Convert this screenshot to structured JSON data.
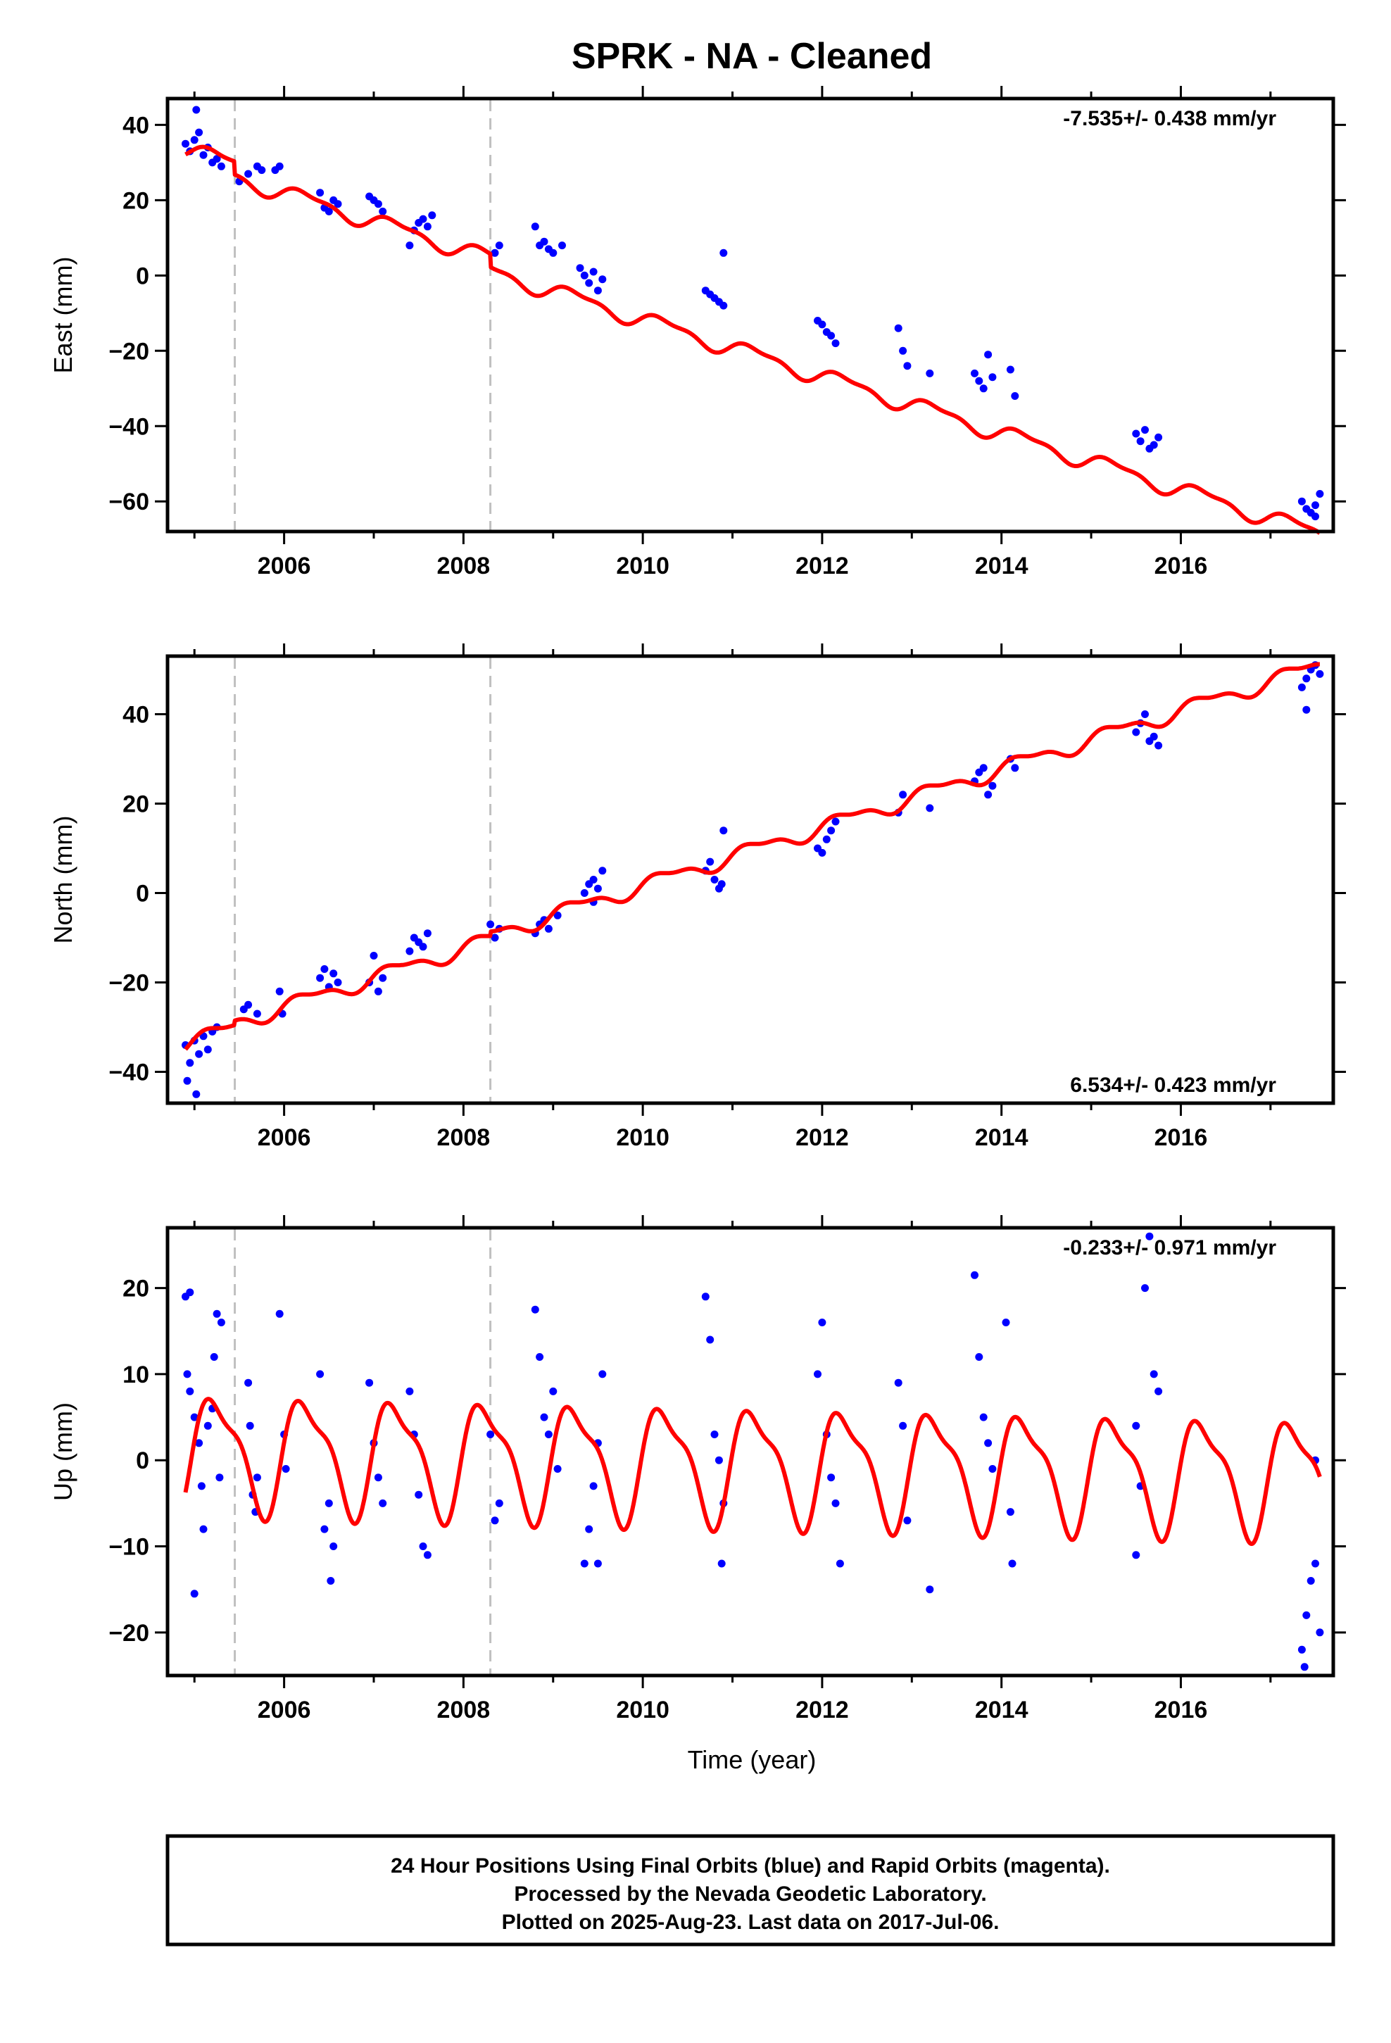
{
  "title": "SPRK  - NA - Cleaned",
  "xlabel": "Time (year)",
  "footer": {
    "line1": "24 Hour Positions Using Final Orbits (blue) and Rapid Orbits (magenta).",
    "line2": "Processed by the Nevada Geodetic Laboratory.",
    "line3": "Plotted on 2025-Aug-23. Last data on 2017-Jul-06."
  },
  "colors": {
    "final_orbits": "#0000ff",
    "model_fit": "#ff0000",
    "equipment_change": "#c0c0c0",
    "axis": "#000000"
  },
  "chart_data": [
    {
      "type": "scatter",
      "name": "East",
      "ylabel": "East (mm)",
      "rate_text": "-7.535+/- 0.438 mm/yr",
      "rate_position": "top-right",
      "xlim": [
        2004.7,
        2017.7
      ],
      "ylim": [
        -68,
        47
      ],
      "xticks": [
        2006,
        2008,
        2010,
        2012,
        2014,
        2016
      ],
      "yticks": [
        -60,
        -40,
        -20,
        0,
        20,
        40
      ],
      "grid": false,
      "equipment_change_lines": [
        2005.45,
        2008.3
      ],
      "fit": {
        "rate": -7.535,
        "intercept_2005": 33.0,
        "annual_amplitude": 2.0,
        "semiannual_amplitude": 0.8,
        "offsets": [
          {
            "at": 2005.45,
            "size": -3.5
          },
          {
            "at": 2008.3,
            "size": -3.5
          }
        ]
      },
      "points": [
        [
          2004.9,
          35
        ],
        [
          2004.95,
          33
        ],
        [
          2005.0,
          36
        ],
        [
          2005.05,
          38
        ],
        [
          2005.02,
          44
        ],
        [
          2005.1,
          32
        ],
        [
          2005.15,
          34
        ],
        [
          2005.2,
          30
        ],
        [
          2005.25,
          31
        ],
        [
          2005.3,
          29
        ],
        [
          2005.5,
          25
        ],
        [
          2005.6,
          27
        ],
        [
          2005.7,
          29
        ],
        [
          2005.75,
          28
        ],
        [
          2005.9,
          28
        ],
        [
          2005.95,
          29
        ],
        [
          2006.4,
          22
        ],
        [
          2006.45,
          18
        ],
        [
          2006.5,
          17
        ],
        [
          2006.55,
          20
        ],
        [
          2006.6,
          19
        ],
        [
          2006.95,
          21
        ],
        [
          2007.0,
          20
        ],
        [
          2007.05,
          19
        ],
        [
          2007.1,
          17
        ],
        [
          2007.4,
          8
        ],
        [
          2007.45,
          12
        ],
        [
          2007.5,
          14
        ],
        [
          2007.55,
          15
        ],
        [
          2007.6,
          13
        ],
        [
          2007.65,
          16
        ],
        [
          2008.35,
          6
        ],
        [
          2008.4,
          8
        ],
        [
          2008.8,
          13
        ],
        [
          2008.85,
          8
        ],
        [
          2008.9,
          9
        ],
        [
          2008.95,
          7
        ],
        [
          2009.0,
          6
        ],
        [
          2009.1,
          8
        ],
        [
          2009.3,
          2
        ],
        [
          2009.35,
          0
        ],
        [
          2009.4,
          -2
        ],
        [
          2009.45,
          1
        ],
        [
          2009.5,
          -4
        ],
        [
          2009.55,
          -1
        ],
        [
          2010.7,
          -4
        ],
        [
          2010.75,
          -5
        ],
        [
          2010.8,
          -6
        ],
        [
          2010.85,
          -7
        ],
        [
          2010.9,
          -8
        ],
        [
          2010.9,
          6
        ],
        [
          2011.95,
          -12
        ],
        [
          2012.0,
          -13
        ],
        [
          2012.05,
          -15
        ],
        [
          2012.1,
          -16
        ],
        [
          2012.15,
          -18
        ],
        [
          2012.85,
          -14
        ],
        [
          2012.9,
          -20
        ],
        [
          2012.95,
          -24
        ],
        [
          2013.2,
          -26
        ],
        [
          2013.7,
          -26
        ],
        [
          2013.75,
          -28
        ],
        [
          2013.8,
          -30
        ],
        [
          2013.85,
          -21
        ],
        [
          2013.9,
          -27
        ],
        [
          2014.1,
          -25
        ],
        [
          2014.15,
          -32
        ],
        [
          2015.5,
          -42
        ],
        [
          2015.55,
          -44
        ],
        [
          2015.6,
          -41
        ],
        [
          2015.65,
          -46
        ],
        [
          2015.7,
          -45
        ],
        [
          2015.75,
          -43
        ],
        [
          2017.35,
          -60
        ],
        [
          2017.4,
          -62
        ],
        [
          2017.45,
          -63
        ],
        [
          2017.5,
          -64
        ],
        [
          2017.55,
          -58
        ],
        [
          2017.5,
          -61
        ]
      ]
    },
    {
      "type": "scatter",
      "name": "North",
      "ylabel": "North (mm)",
      "rate_text": "6.534+/- 0.423 mm/yr",
      "rate_position": "bottom-right",
      "xlim": [
        2004.7,
        2017.7
      ],
      "ylim": [
        -47,
        53
      ],
      "xticks": [
        2006,
        2008,
        2010,
        2012,
        2014,
        2016
      ],
      "yticks": [
        -40,
        -20,
        0,
        20,
        40
      ],
      "grid": false,
      "equipment_change_lines": [
        2005.45,
        2008.3
      ],
      "fit": {
        "rate": 6.534,
        "intercept_2005": -33.0,
        "annual_amplitude": 1.6,
        "semiannual_amplitude": 0.7,
        "offsets": [
          {
            "at": 2005.45,
            "size": 1.0
          },
          {
            "at": 2008.3,
            "size": 1.0
          }
        ]
      },
      "points": [
        [
          2004.9,
          -34
        ],
        [
          2004.95,
          -38
        ],
        [
          2005.0,
          -33
        ],
        [
          2005.02,
          -45
        ],
        [
          2005.05,
          -36
        ],
        [
          2005.1,
          -32
        ],
        [
          2005.15,
          -35
        ],
        [
          2005.2,
          -31
        ],
        [
          2005.25,
          -30
        ],
        [
          2004.92,
          -42
        ],
        [
          2005.55,
          -26
        ],
        [
          2005.6,
          -25
        ],
        [
          2005.7,
          -27
        ],
        [
          2005.95,
          -22
        ],
        [
          2005.98,
          -27
        ],
        [
          2006.4,
          -19
        ],
        [
          2006.45,
          -17
        ],
        [
          2006.5,
          -21
        ],
        [
          2006.55,
          -18
        ],
        [
          2006.6,
          -20
        ],
        [
          2006.95,
          -20
        ],
        [
          2007.0,
          -14
        ],
        [
          2007.05,
          -22
        ],
        [
          2007.1,
          -19
        ],
        [
          2007.4,
          -13
        ],
        [
          2007.45,
          -10
        ],
        [
          2007.5,
          -11
        ],
        [
          2007.55,
          -12
        ],
        [
          2007.6,
          -9
        ],
        [
          2008.3,
          -7
        ],
        [
          2008.35,
          -10
        ],
        [
          2008.4,
          -8
        ],
        [
          2008.8,
          -9
        ],
        [
          2008.85,
          -7
        ],
        [
          2008.9,
          -6
        ],
        [
          2008.95,
          -8
        ],
        [
          2009.05,
          -5
        ],
        [
          2009.35,
          0
        ],
        [
          2009.4,
          2
        ],
        [
          2009.45,
          3
        ],
        [
          2009.5,
          1
        ],
        [
          2009.55,
          5
        ],
        [
          2009.45,
          -2
        ],
        [
          2010.7,
          5
        ],
        [
          2010.75,
          7
        ],
        [
          2010.8,
          3
        ],
        [
          2010.85,
          1
        ],
        [
          2010.9,
          14
        ],
        [
          2010.88,
          2
        ],
        [
          2011.95,
          10
        ],
        [
          2012.0,
          9
        ],
        [
          2012.05,
          12
        ],
        [
          2012.1,
          14
        ],
        [
          2012.15,
          16
        ],
        [
          2012.85,
          18
        ],
        [
          2012.9,
          22
        ],
        [
          2013.2,
          19
        ],
        [
          2013.7,
          25
        ],
        [
          2013.75,
          27
        ],
        [
          2013.8,
          28
        ],
        [
          2013.85,
          22
        ],
        [
          2013.9,
          24
        ],
        [
          2014.1,
          30
        ],
        [
          2014.15,
          28
        ],
        [
          2015.5,
          36
        ],
        [
          2015.55,
          38
        ],
        [
          2015.6,
          40
        ],
        [
          2015.65,
          34
        ],
        [
          2015.7,
          35
        ],
        [
          2015.75,
          33
        ],
        [
          2017.35,
          46
        ],
        [
          2017.4,
          48
        ],
        [
          2017.45,
          50
        ],
        [
          2017.5,
          51
        ],
        [
          2017.55,
          49
        ],
        [
          2017.4,
          41
        ]
      ]
    },
    {
      "type": "scatter",
      "name": "Up",
      "ylabel": "Up (mm)",
      "rate_text": "-0.233+/- 0.971 mm/yr",
      "rate_position": "top-right",
      "xlim": [
        2004.7,
        2017.7
      ],
      "ylim": [
        -25,
        27
      ],
      "xticks": [
        2006,
        2008,
        2010,
        2012,
        2014,
        2016
      ],
      "yticks": [
        -20,
        -10,
        0,
        10,
        20
      ],
      "grid": false,
      "equipment_change_lines": [
        2005.45,
        2008.3
      ],
      "fit": {
        "rate": -0.233,
        "intercept_2005": 1.0,
        "annual_amplitude": 6.3,
        "semiannual_amplitude": 2.0,
        "offsets": []
      },
      "points": [
        [
          2004.9,
          19
        ],
        [
          2004.95,
          19.5
        ],
        [
          2004.92,
          10
        ],
        [
          2004.95,
          8
        ],
        [
          2005.0,
          5
        ],
        [
          2005.05,
          2
        ],
        [
          2005.08,
          -3
        ],
        [
          2005.1,
          -8
        ],
        [
          2005.0,
          -15.5
        ],
        [
          2005.15,
          4
        ],
        [
          2005.2,
          6
        ],
        [
          2005.22,
          12
        ],
        [
          2005.25,
          17
        ],
        [
          2005.3,
          16
        ],
        [
          2005.28,
          -2
        ],
        [
          2005.6,
          9
        ],
        [
          2005.62,
          4
        ],
        [
          2005.65,
          -4
        ],
        [
          2005.68,
          -6
        ],
        [
          2005.7,
          -2
        ],
        [
          2005.95,
          17
        ],
        [
          2006.0,
          3
        ],
        [
          2006.02,
          -1
        ],
        [
          2006.4,
          10
        ],
        [
          2006.45,
          -8
        ],
        [
          2006.5,
          -5
        ],
        [
          2006.52,
          -14
        ],
        [
          2006.55,
          -10
        ],
        [
          2006.95,
          9
        ],
        [
          2007.0,
          2
        ],
        [
          2007.05,
          -2
        ],
        [
          2007.1,
          -5
        ],
        [
          2007.4,
          8
        ],
        [
          2007.45,
          3
        ],
        [
          2007.5,
          -4
        ],
        [
          2007.55,
          -10
        ],
        [
          2007.6,
          -11
        ],
        [
          2008.3,
          3
        ],
        [
          2008.35,
          -7
        ],
        [
          2008.4,
          -5
        ],
        [
          2008.8,
          17.5
        ],
        [
          2008.85,
          12
        ],
        [
          2008.9,
          5
        ],
        [
          2008.95,
          3
        ],
        [
          2009.0,
          8
        ],
        [
          2009.05,
          -1
        ],
        [
          2009.35,
          -12
        ],
        [
          2009.4,
          -8
        ],
        [
          2009.45,
          -3
        ],
        [
          2009.5,
          2
        ],
        [
          2009.55,
          10
        ],
        [
          2009.5,
          -12
        ],
        [
          2010.7,
          19
        ],
        [
          2010.75,
          14
        ],
        [
          2010.8,
          3
        ],
        [
          2010.85,
          0
        ],
        [
          2010.9,
          -5
        ],
        [
          2010.88,
          -12
        ],
        [
          2011.95,
          10
        ],
        [
          2012.0,
          16
        ],
        [
          2012.05,
          3
        ],
        [
          2012.1,
          -2
        ],
        [
          2012.15,
          -5
        ],
        [
          2012.2,
          -12
        ],
        [
          2012.85,
          9
        ],
        [
          2012.9,
          4
        ],
        [
          2012.95,
          -7
        ],
        [
          2013.2,
          -15
        ],
        [
          2013.7,
          21.5
        ],
        [
          2013.75,
          12
        ],
        [
          2013.8,
          5
        ],
        [
          2013.85,
          2
        ],
        [
          2013.9,
          -1
        ],
        [
          2014.05,
          16
        ],
        [
          2014.1,
          -6
        ],
        [
          2014.12,
          -12
        ],
        [
          2015.5,
          4
        ],
        [
          2015.55,
          -3
        ],
        [
          2015.6,
          20
        ],
        [
          2015.65,
          26
        ],
        [
          2015.7,
          10
        ],
        [
          2015.75,
          8
        ],
        [
          2015.5,
          -11
        ],
        [
          2017.35,
          -22
        ],
        [
          2017.4,
          -18
        ],
        [
          2017.45,
          -14
        ],
        [
          2017.5,
          -12
        ],
        [
          2017.55,
          -20
        ],
        [
          2017.5,
          0
        ],
        [
          2017.38,
          -24
        ]
      ]
    }
  ]
}
